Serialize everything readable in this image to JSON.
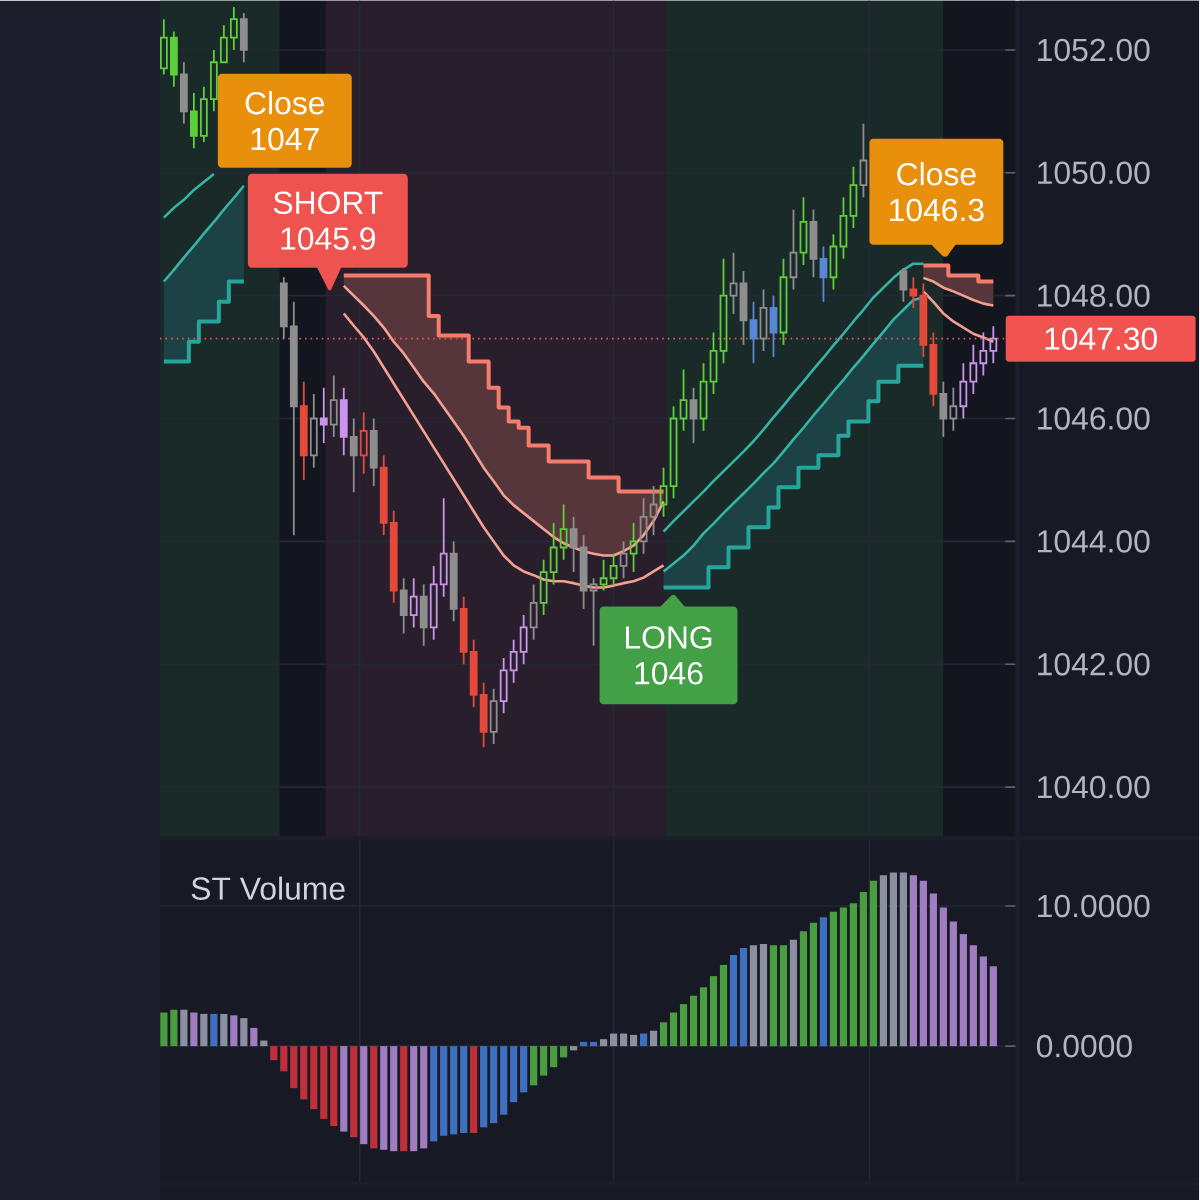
{
  "chart_data": [
    {
      "type": "candlestick",
      "categories": [
        null,
        null,
        null,
        null,
        null,
        null,
        null,
        null,
        null,
        null,
        null,
        null,
        null,
        null,
        null,
        null,
        null,
        null,
        null,
        null,
        null,
        null,
        null,
        null,
        null,
        null,
        null,
        null,
        null,
        null,
        null,
        null,
        null,
        null,
        null,
        null,
        null,
        null,
        null,
        null,
        null,
        null,
        null,
        null,
        null,
        null,
        null,
        null,
        null,
        null,
        null,
        null,
        null,
        null,
        null,
        null,
        null,
        null,
        null,
        null,
        null,
        null,
        null,
        null,
        null,
        null,
        null,
        null,
        null,
        null,
        null,
        null,
        null,
        null,
        null,
        null,
        null,
        null,
        null,
        null,
        null,
        null,
        null,
        null
      ],
      "ohlc": [
        [
          1051.7,
          1052.5,
          1051.6,
          1052.2
        ],
        [
          1052.2,
          1052.3,
          1051.4,
          1051.6
        ],
        [
          1051.6,
          1051.8,
          1050.8,
          1051.0
        ],
        [
          1051.0,
          1051.3,
          1050.4,
          1050.6
        ],
        [
          1050.6,
          1051.4,
          1050.5,
          1051.2
        ],
        [
          1051.2,
          1052.0,
          1051.0,
          1051.8
        ],
        [
          1051.8,
          1052.4,
          1051.8,
          1052.2
        ],
        [
          1052.2,
          1052.7,
          1052.0,
          1052.5
        ],
        [
          1052.5,
          1052.6,
          1051.8,
          1052.0
        ],
        null,
        null,
        null,
        [
          1048.2,
          1048.3,
          1047.3,
          1047.5
        ],
        [
          1047.5,
          1047.9,
          1044.1,
          1046.2
        ],
        [
          1046.2,
          1046.6,
          1045.0,
          1045.4
        ],
        [
          1045.4,
          1046.4,
          1045.2,
          1046.0
        ],
        [
          1046.0,
          1046.5,
          1045.6,
          1045.9
        ],
        [
          1045.9,
          1046.7,
          1045.7,
          1046.3
        ],
        [
          1046.3,
          1046.5,
          1045.4,
          1045.7
        ],
        [
          1045.7,
          1046.0,
          1044.8,
          1045.4
        ],
        [
          1045.4,
          1046.1,
          1045.1,
          1045.8
        ],
        [
          1045.8,
          1046.0,
          1044.9,
          1045.2
        ],
        [
          1045.2,
          1045.4,
          1044.1,
          1044.3
        ],
        [
          1044.3,
          1044.5,
          1043.0,
          1043.2
        ],
        [
          1043.2,
          1043.4,
          1042.5,
          1042.8
        ],
        [
          1042.8,
          1043.4,
          1042.6,
          1043.1
        ],
        [
          1043.1,
          1043.3,
          1042.3,
          1042.6
        ],
        [
          1042.6,
          1043.6,
          1042.4,
          1043.3
        ],
        [
          1043.3,
          1044.7,
          1043.1,
          1043.8
        ],
        [
          1043.8,
          1044.0,
          1042.7,
          1042.9
        ],
        [
          1042.9,
          1043.1,
          1042.0,
          1042.2
        ],
        [
          1042.2,
          1042.4,
          1041.3,
          1041.5
        ],
        [
          1041.5,
          1041.7,
          1040.65,
          1040.9
        ],
        [
          1040.9,
          1041.6,
          1040.7,
          1041.4
        ],
        [
          1041.4,
          1042.1,
          1041.2,
          1041.9
        ],
        [
          1041.9,
          1042.4,
          1041.7,
          1042.2
        ],
        [
          1042.2,
          1042.8,
          1042.0,
          1042.6
        ],
        [
          1042.6,
          1043.3,
          1042.4,
          1043.0
        ],
        [
          1043.0,
          1043.7,
          1042.8,
          1043.5
        ],
        [
          1043.5,
          1044.3,
          1043.3,
          1043.9
        ],
        [
          1043.9,
          1044.6,
          1043.7,
          1044.2
        ],
        [
          1044.2,
          1044.4,
          1043.5,
          1043.9
        ],
        [
          1043.9,
          1044.1,
          1042.9,
          1043.2
        ],
        [
          1043.2,
          1043.4,
          1042.3,
          1043.3
        ],
        [
          1043.3,
          1043.7,
          1043.2,
          1043.4
        ],
        [
          1043.4,
          1043.8,
          1043.3,
          1043.6
        ],
        [
          1043.6,
          1044.0,
          1043.4,
          1043.8
        ],
        [
          1043.8,
          1044.3,
          1043.5,
          1044.0
        ],
        [
          1044.0,
          1044.7,
          1043.8,
          1044.4
        ],
        [
          1044.4,
          1044.9,
          1044.1,
          1044.6
        ],
        [
          1044.6,
          1045.2,
          1044.4,
          1044.9
        ],
        [
          1044.9,
          1046.2,
          1044.7,
          1046.0
        ],
        [
          1046.0,
          1046.8,
          1045.8,
          1046.3
        ],
        [
          1046.3,
          1046.5,
          1045.6,
          1046.0
        ],
        [
          1046.0,
          1046.9,
          1045.8,
          1046.6
        ],
        [
          1046.6,
          1047.4,
          1046.4,
          1047.1
        ],
        [
          1047.1,
          1048.6,
          1046.9,
          1048.0
        ],
        [
          1048.0,
          1048.7,
          1047.7,
          1048.2
        ],
        [
          1048.2,
          1048.4,
          1047.2,
          1047.6
        ],
        [
          1047.6,
          1047.9,
          1046.9,
          1047.3
        ],
        [
          1047.3,
          1048.1,
          1047.1,
          1047.8
        ],
        [
          1047.8,
          1048.0,
          1047.0,
          1047.4
        ],
        [
          1047.4,
          1048.6,
          1047.2,
          1048.3
        ],
        [
          1048.3,
          1049.4,
          1048.1,
          1048.7
        ],
        [
          1048.7,
          1049.6,
          1048.5,
          1049.2
        ],
        [
          1049.2,
          1049.4,
          1048.3,
          1048.6
        ],
        [
          1048.6,
          1048.8,
          1047.9,
          1048.3
        ],
        [
          1048.3,
          1049.0,
          1048.1,
          1048.8
        ],
        [
          1048.8,
          1049.6,
          1048.6,
          1049.3
        ],
        [
          1049.3,
          1050.1,
          1049.1,
          1049.8
        ],
        [
          1049.8,
          1050.8,
          1049.6,
          1050.2
        ],
        null,
        null,
        null,
        [
          1048.4,
          1048.45,
          1047.9,
          1048.1
        ],
        [
          1048.1,
          1048.3,
          1047.8,
          1048.0
        ],
        [
          1048.0,
          1048.2,
          1047.0,
          1047.2
        ],
        [
          1047.2,
          1047.4,
          1046.2,
          1046.4
        ],
        [
          1046.4,
          1046.6,
          1045.7,
          1046.0
        ],
        [
          1046.0,
          1046.5,
          1045.8,
          1046.2
        ],
        [
          1046.2,
          1046.9,
          1046.0,
          1046.6
        ],
        [
          1046.6,
          1047.2,
          1046.4,
          1046.9
        ],
        [
          1046.9,
          1047.4,
          1046.7,
          1047.1
        ],
        [
          1047.1,
          1047.5,
          1046.9,
          1047.3
        ]
      ],
      "colors": [
        "#5ccf3a",
        "#5ccf3a",
        "#8e8e8e",
        "#5ccf3a",
        "#5ccf3a",
        "#5ccf3a",
        "#5ccf3a",
        "#5ccf3a",
        "#8e8e8e",
        "#8e8e8e",
        "#8e8e8e",
        "#8e8e8e",
        "#8e8e8e",
        "#8e8e8e",
        "#e5493a",
        "#8e8e8e",
        "#c994ea",
        "#8e8e8e",
        "#c994ea",
        "#8e8e8e",
        "#e5493a",
        "#8e8e8e",
        "#e5493a",
        "#e5493a",
        "#8e8e8e",
        "#c994ea",
        "#8e8e8e",
        "#c994ea",
        "#c994ea",
        "#8e8e8e",
        "#e5493a",
        "#e5493a",
        "#e5493a",
        "#8e8e8e",
        "#c994ea",
        "#c994ea",
        "#c994ea",
        "#8e8e8e",
        "#5ccf3a",
        "#5ccf3a",
        "#5ccf3a",
        "#8e8e8e",
        "#8e8e8e",
        "#8e8e8e",
        "#5ccf3a",
        "#5ccf3a",
        "#8e8e8e",
        "#5ccf3a",
        "#8e8e8e",
        "#8e8e8e",
        "#5ccf3a",
        "#5ccf3a",
        "#5ccf3a",
        "#8e8e8e",
        "#5ccf3a",
        "#5ccf3a",
        "#5ccf3a",
        "#8e8e8e",
        "#8e8e8e",
        "#5a86d6",
        "#8e8e8e",
        "#5a86d6",
        "#5ccf3a",
        "#8e8e8e",
        "#5ccf3a",
        "#8e8e8e",
        "#5a86d6",
        "#5ccf3a",
        "#5ccf3a",
        "#5ccf3a",
        "#8e8e8e",
        "#8e8e8e",
        "#8e8e8e",
        "#8e8e8e",
        "#8e8e8e",
        "#e5493a",
        "#e5493a",
        "#e5493a",
        "#8e8e8e",
        "#8e8e8e",
        "#c994ea",
        "#c994ea",
        "#c994ea",
        "#c994ea"
      ],
      "series": [
        {
          "type": "line",
          "color": "#35b3a4",
          "values": [
            1049.27,
            1049.43,
            1049.56,
            1049.72,
            1049.85,
            1049.98,
            null,
            null,
            null,
            null,
            null,
            null,
            null,
            null,
            null,
            null,
            null,
            null,
            null,
            null,
            null,
            null,
            null,
            null,
            null,
            null,
            null,
            null,
            null,
            null,
            null,
            null,
            null,
            null,
            null,
            null,
            null,
            null,
            null,
            null,
            null,
            null,
            null,
            null,
            null,
            null,
            null,
            null,
            null,
            null,
            1044.16,
            1044.33,
            1044.49,
            1044.65,
            1044.81,
            1044.98,
            1045.14,
            1045.3,
            1045.46,
            1045.63,
            1045.82,
            1046.02,
            1046.21,
            1046.41,
            1046.6,
            1046.8,
            1046.99,
            1047.19,
            1047.38,
            1047.58,
            1047.77,
            1047.97,
            1048.13,
            1048.29,
            1048.42,
            1048.52,
            1048.52,
            null,
            null,
            null,
            null,
            null,
            null,
            null
          ]
        },
        {
          "type": "line",
          "color": "#35b3a4",
          "values": [
            1048.23,
            1048.42,
            1048.62,
            1048.81,
            1049.01,
            1049.2,
            1049.4,
            1049.59,
            1049.79,
            null,
            null,
            null,
            null,
            null,
            null,
            null,
            null,
            null,
            null,
            null,
            null,
            null,
            null,
            null,
            null,
            null,
            null,
            null,
            null,
            null,
            null,
            null,
            null,
            null,
            null,
            null,
            null,
            null,
            null,
            null,
            null,
            null,
            null,
            null,
            null,
            null,
            null,
            null,
            null,
            null,
            1043.51,
            1043.64,
            1043.77,
            1043.93,
            1044.13,
            1044.29,
            1044.46,
            1044.62,
            1044.78,
            1044.94,
            1045.11,
            1045.27,
            1045.46,
            1045.66,
            1045.85,
            1046.05,
            1046.24,
            1046.44,
            1046.63,
            1046.83,
            1047.02,
            1047.22,
            1047.41,
            1047.61,
            1047.77,
            1047.93,
            1047.97,
            null,
            null,
            null,
            null,
            null,
            null,
            null
          ]
        },
        {
          "type": "step",
          "color": "#26a69a",
          "values": [
            1046.93,
            1046.93,
            1046.93,
            1047.25,
            1047.58,
            1047.58,
            1047.9,
            1048.23,
            1048.23,
            null,
            null,
            null,
            null,
            null,
            null,
            null,
            null,
            null,
            null,
            null,
            null,
            null,
            null,
            null,
            null,
            null,
            null,
            null,
            null,
            null,
            null,
            null,
            null,
            null,
            null,
            null,
            null,
            null,
            null,
            null,
            null,
            null,
            null,
            null,
            null,
            null,
            null,
            null,
            null,
            null,
            1043.25,
            1043.25,
            1043.25,
            1043.25,
            1043.25,
            1043.58,
            1043.58,
            1043.9,
            1043.9,
            1044.23,
            1044.23,
            1044.55,
            1044.88,
            1044.88,
            1045.2,
            1045.2,
            1045.4,
            1045.4,
            1045.72,
            1045.95,
            1045.95,
            1046.28,
            1046.6,
            1046.6,
            1046.86,
            1046.86,
            1046.86,
            null,
            null,
            null,
            null,
            null,
            null,
            null
          ],
          "lower": [
            1046.93,
            1046.93,
            1046.93,
            1047.25,
            1047.58,
            1047.58,
            1047.9,
            1048.23,
            1048.23,
            null,
            null,
            null,
            null,
            null,
            null,
            null,
            null,
            null,
            null,
            null,
            null,
            null,
            null,
            null,
            null,
            null,
            null,
            null,
            null,
            null,
            null,
            null,
            null,
            null,
            null,
            null,
            null,
            null,
            null,
            null,
            null,
            null,
            null,
            null,
            null,
            null,
            null,
            null,
            null,
            null,
            1043.25,
            1043.25,
            1043.25,
            1043.25,
            1043.25,
            1043.58,
            1043.58,
            1043.9,
            1043.9,
            1044.23,
            1044.23,
            1044.55,
            1044.88,
            1044.88,
            1045.2,
            1045.2,
            1045.4,
            1045.4,
            1045.72,
            1045.95,
            1045.95,
            1046.28,
            1046.6,
            1046.6,
            1046.86,
            1046.86,
            1046.86,
            null,
            null,
            null,
            null,
            null,
            null,
            null
          ],
          "upper": [
            1048.23,
            1048.42,
            1048.62,
            1048.81,
            1049.01,
            1049.2,
            1049.4,
            1049.59,
            1049.79,
            null,
            null,
            null,
            null,
            null,
            null,
            null,
            null,
            null,
            null,
            null,
            null,
            null,
            null,
            null,
            null,
            null,
            null,
            null,
            null,
            null,
            null,
            null,
            null,
            null,
            null,
            null,
            null,
            null,
            null,
            null,
            null,
            null,
            null,
            null,
            null,
            null,
            null,
            null,
            null,
            null,
            1043.51,
            1043.64,
            1043.77,
            1043.93,
            1044.13,
            1044.29,
            1044.46,
            1044.62,
            1044.78,
            1044.94,
            1045.11,
            1045.27,
            1045.46,
            1045.66,
            1045.85,
            1046.05,
            1046.24,
            1046.44,
            1046.63,
            1046.83,
            1047.02,
            1047.22,
            1047.41,
            1047.61,
            1047.77,
            1047.93,
            1047.97,
            null,
            null,
            null,
            null,
            null,
            null,
            null
          ]
        },
        {
          "type": "line",
          "color": "#f4a090",
          "values": [
            null,
            null,
            null,
            null,
            null,
            null,
            null,
            null,
            null,
            null,
            null,
            null,
            null,
            null,
            null,
            null,
            null,
            null,
            1048.16,
            1048.0,
            1047.84,
            1047.67,
            1047.48,
            1047.25,
            1047.06,
            1046.83,
            1046.6,
            1046.41,
            1046.18,
            1045.95,
            1045.72,
            1045.46,
            1045.2,
            1044.98,
            1044.75,
            1044.59,
            1044.46,
            1044.33,
            1044.2,
            1044.07,
            1043.97,
            1043.9,
            1043.84,
            1043.8,
            1043.77,
            1043.77,
            1043.84,
            1043.93,
            1044.1,
            1044.33,
            1044.65,
            null,
            null,
            null,
            null,
            null,
            null,
            null,
            null,
            null,
            null,
            null,
            null,
            null,
            null,
            null,
            null,
            null,
            null,
            null,
            null,
            null,
            null,
            null,
            null,
            null,
            1048.29,
            1048.23,
            1048.13,
            1048.07,
            1048.0,
            1047.93,
            1047.87,
            1047.84
          ]
        },
        {
          "type": "line",
          "color": "#f4a090",
          "values": [
            null,
            null,
            null,
            null,
            null,
            null,
            null,
            null,
            null,
            null,
            null,
            null,
            null,
            null,
            null,
            null,
            null,
            null,
            1047.71,
            1047.51,
            1047.32,
            1047.09,
            1046.83,
            1046.57,
            1046.31,
            1046.05,
            1045.79,
            1045.53,
            1045.27,
            1045.01,
            1044.75,
            1044.49,
            1044.23,
            1044.0,
            1043.77,
            1043.61,
            1043.51,
            1043.45,
            1043.38,
            1043.35,
            1043.35,
            1043.32,
            1043.28,
            1043.25,
            1043.25,
            1043.28,
            1043.32,
            1043.35,
            1043.41,
            1043.51,
            1043.61,
            null,
            null,
            null,
            null,
            null,
            null,
            null,
            null,
            null,
            null,
            null,
            null,
            null,
            null,
            null,
            null,
            null,
            null,
            null,
            null,
            null,
            null,
            null,
            null,
            null,
            1048.07,
            1047.9,
            1047.71,
            1047.58,
            1047.48,
            1047.38,
            1047.32,
            1047.25
          ]
        },
        {
          "type": "step",
          "color": "#f77c6c",
          "values": [
            null,
            null,
            null,
            null,
            null,
            null,
            null,
            null,
            null,
            null,
            null,
            null,
            null,
            null,
            null,
            null,
            null,
            null,
            1048.33,
            1048.33,
            1048.33,
            1048.33,
            1048.33,
            1048.33,
            1048.33,
            1048.33,
            1048.33,
            1047.67,
            1047.35,
            1047.35,
            1047.35,
            1046.93,
            1046.93,
            1046.5,
            1046.18,
            1045.95,
            1045.85,
            1045.56,
            1045.56,
            1045.3,
            1045.3,
            1045.3,
            1045.3,
            1045.04,
            1045.04,
            1045.04,
            1044.81,
            1044.81,
            1044.81,
            1044.81,
            1044.81,
            null,
            null,
            null,
            null,
            null,
            null,
            null,
            null,
            null,
            null,
            null,
            null,
            null,
            null,
            null,
            null,
            null,
            null,
            null,
            null,
            null,
            null,
            null,
            null,
            null,
            1048.49,
            1048.49,
            1048.49,
            1048.33,
            1048.33,
            1048.33,
            1048.23,
            1048.23
          ],
          "lower": [
            null,
            null,
            null,
            null,
            null,
            null,
            null,
            null,
            null,
            null,
            null,
            null,
            null,
            null,
            null,
            null,
            null,
            null,
            1048.16,
            1048.0,
            1047.84,
            1047.67,
            1047.48,
            1047.25,
            1047.06,
            1046.83,
            1046.6,
            1046.41,
            1046.18,
            1045.95,
            1045.72,
            1045.46,
            1045.2,
            1044.98,
            1044.75,
            1044.59,
            1044.46,
            1044.33,
            1044.2,
            1044.07,
            1043.97,
            1043.9,
            1043.84,
            1043.8,
            1043.77,
            1043.77,
            1043.84,
            1043.93,
            1044.1,
            1044.33,
            1044.65,
            null,
            null,
            null,
            null,
            null,
            null,
            null,
            null,
            null,
            null,
            null,
            null,
            null,
            null,
            null,
            null,
            null,
            null,
            null,
            null,
            null,
            null,
            null,
            null,
            null,
            1048.29,
            1048.23,
            1048.13,
            1048.07,
            1048.0,
            1047.93,
            1047.87,
            1047.84
          ],
          "upper": [
            null,
            null,
            null,
            null,
            null,
            null,
            null,
            null,
            null,
            null,
            null,
            null,
            null,
            null,
            null,
            null,
            null,
            null,
            1048.33,
            1048.33,
            1048.33,
            1048.33,
            1048.33,
            1048.33,
            1048.33,
            1048.33,
            1048.33,
            1047.67,
            1047.35,
            1047.35,
            1047.35,
            1046.93,
            1046.93,
            1046.5,
            1046.18,
            1045.95,
            1045.85,
            1045.56,
            1045.56,
            1045.3,
            1045.3,
            1045.3,
            1045.3,
            1045.04,
            1045.04,
            1045.04,
            1044.81,
            1044.81,
            1044.81,
            1044.81,
            1044.81,
            null,
            null,
            null,
            null,
            null,
            null,
            null,
            null,
            null,
            null,
            null,
            null,
            null,
            null,
            null,
            null,
            null,
            null,
            null,
            null,
            null,
            null,
            null,
            null,
            null,
            1048.49,
            1048.49,
            1048.49,
            1048.33,
            1048.33,
            1048.33,
            1048.23,
            1048.23
          ]
        }
      ],
      "ylim": [
        1039.2,
        1052.8
      ],
      "yticks": [
        {
          "value": 1040,
          "label": "1040.00"
        },
        {
          "value": 1042,
          "label": "1042.00"
        },
        {
          "value": 1044,
          "label": "1044.00"
        },
        {
          "value": 1046,
          "label": "1046.00"
        },
        {
          "value": 1048,
          "label": "1048.00"
        },
        {
          "value": 1050,
          "label": "1050.00"
        },
        {
          "value": 1052,
          "label": "1052.00"
        }
      ],
      "grid": true,
      "tick_labels": "y",
      "annotations": [
        "Close 1047",
        "SHORT 1045.9",
        "LONG 1046",
        "Close 1046.3"
      ],
      "ref_lines": [
        {
          "axis": "y",
          "value": 1047.3,
          "label": "1047.30",
          "color": "#f05350",
          "line_style": "dotted"
        }
      ]
    },
    {
      "type": "bar",
      "title": "ST Volume",
      "categories": [
        null,
        null,
        null,
        null,
        null,
        null,
        null,
        null,
        null,
        null,
        null,
        null,
        null,
        null,
        null,
        null,
        null,
        null,
        null,
        null,
        null,
        null,
        null,
        null,
        null,
        null,
        null,
        null,
        null,
        null,
        null,
        null,
        null,
        null,
        null,
        null,
        null,
        null,
        null,
        null,
        null,
        null,
        null,
        null,
        null,
        null,
        null,
        null,
        null,
        null,
        null,
        null,
        null,
        null,
        null,
        null,
        null,
        null,
        null,
        null,
        null,
        null,
        null,
        null,
        null,
        null,
        null,
        null,
        null,
        null,
        null,
        null,
        null,
        null,
        null,
        null,
        null,
        null,
        null,
        null,
        null,
        null,
        null,
        null
      ],
      "values": [
        2.4,
        2.6,
        2.6,
        2.4,
        2.3,
        2.3,
        2.3,
        2.2,
        2.0,
        1.3,
        0.4,
        -1.0,
        -1.8,
        -3.0,
        -3.8,
        -4.5,
        -5.2,
        -5.7,
        -6.1,
        -6.5,
        -7.0,
        -7.3,
        -7.4,
        -7.5,
        -7.5,
        -7.5,
        -7.3,
        -6.8,
        -6.4,
        -6.3,
        -6.2,
        -6.2,
        -5.8,
        -5.5,
        -4.9,
        -4.0,
        -3.3,
        -2.8,
        -2.1,
        -1.5,
        -0.8,
        -0.3,
        0.3,
        0.3,
        0.5,
        0.9,
        0.9,
        0.8,
        0.9,
        1.1,
        1.7,
        2.4,
        3.0,
        3.6,
        4.2,
        5.0,
        5.8,
        6.5,
        7.0,
        7.2,
        7.3,
        7.2,
        7.2,
        7.6,
        8.2,
        8.8,
        9.2,
        9.6,
        9.9,
        10.2,
        11.0,
        11.8,
        12.2,
        12.4,
        12.4,
        12.2,
        11.8,
        10.9,
        9.9,
        8.9,
        8.0,
        7.2,
        6.4,
        5.7
      ],
      "colors": [
        "#4a9e3f",
        "#4a9e3f",
        "#8c8fa0",
        "#a07cc0",
        "#8c8fa0",
        "#3f6fbf",
        "#8c8fa0",
        "#a07cc0",
        "#8c8fa0",
        "#a07cc0",
        "#8c8fa0",
        "#c0303a",
        "#c0303a",
        "#c0303a",
        "#c0303a",
        "#c0303a",
        "#c0303a",
        "#c0303a",
        "#a07cc0",
        "#c0303a",
        "#a07cc0",
        "#c0303a",
        "#a07cc0",
        "#a07cc0",
        "#c0303a",
        "#a07cc0",
        "#a07cc0",
        "#3f6fbf",
        "#3f6fbf",
        "#3f6fbf",
        "#3f6fbf",
        "#c0303a",
        "#3f6fbf",
        "#3f6fbf",
        "#3f6fbf",
        "#3f6fbf",
        "#3f6fbf",
        "#4a9e3f",
        "#4a9e3f",
        "#4a9e3f",
        "#4a9e3f",
        "#8c8fa0",
        "#3f6fbf",
        "#3f6fbf",
        "#8c8fa0",
        "#8c8fa0",
        "#8c8fa0",
        "#8c8fa0",
        "#3f6fbf",
        "#8c8fa0",
        "#4a9e3f",
        "#4a9e3f",
        "#4a9e3f",
        "#4a9e3f",
        "#4a9e3f",
        "#4a9e3f",
        "#4a9e3f",
        "#3f6fbf",
        "#3f6fbf",
        "#8c8fa0",
        "#8c8fa0",
        "#4a9e3f",
        "#4a9e3f",
        "#8c8fa0",
        "#4a9e3f",
        "#4a9e3f",
        "#3f6fbf",
        "#4a9e3f",
        "#4a9e3f",
        "#4a9e3f",
        "#4a9e3f",
        "#4a9e3f",
        "#8c8fa0",
        "#8c8fa0",
        "#8c8fa0",
        "#a07cc0",
        "#a07cc0",
        "#a07cc0",
        "#a07cc0",
        "#a07cc0",
        "#a07cc0",
        "#a07cc0",
        "#a07cc0",
        "#a07cc0"
      ],
      "ylim": [
        -9.7,
        14.7
      ],
      "yticks": [
        {
          "value": 10,
          "label": "10.0000"
        },
        {
          "value": 0,
          "label": "0.0000"
        }
      ],
      "grid": true,
      "tick_labels": "y"
    }
  ]
}
